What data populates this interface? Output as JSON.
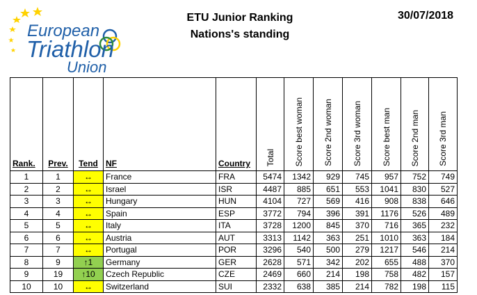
{
  "logo": {
    "line1": "European",
    "line2": "Triathlon",
    "line3": "Union"
  },
  "header": {
    "title_line1": "ETU Junior Ranking",
    "title_line2": "Nations's standing",
    "date": "30/07/2018"
  },
  "table": {
    "headers": [
      "Rank.",
      "Prev.",
      "Tend",
      "NF",
      "Country",
      "Total",
      "Score best woman",
      "Score 2nd woman",
      "Score 3rd woman",
      "Score best man",
      "Score 2nd man",
      "Score 3rd man"
    ],
    "rows": [
      {
        "rank": "1",
        "prev": "1",
        "tend": "↔",
        "trend": "same",
        "nf": "France",
        "country": "FRA",
        "total": "5474",
        "w1": "1342",
        "w2": "929",
        "w3": "745",
        "m1": "957",
        "m2": "752",
        "m3": "749"
      },
      {
        "rank": "2",
        "prev": "2",
        "tend": "↔",
        "trend": "same",
        "nf": "Israel",
        "country": "ISR",
        "total": "4487",
        "w1": "885",
        "w2": "651",
        "w3": "553",
        "m1": "1041",
        "m2": "830",
        "m3": "527"
      },
      {
        "rank": "3",
        "prev": "3",
        "tend": "↔",
        "trend": "same",
        "nf": "Hungary",
        "country": "HUN",
        "total": "4104",
        "w1": "727",
        "w2": "569",
        "w3": "416",
        "m1": "908",
        "m2": "838",
        "m3": "646"
      },
      {
        "rank": "4",
        "prev": "4",
        "tend": "↔",
        "trend": "same",
        "nf": "Spain",
        "country": "ESP",
        "total": "3772",
        "w1": "794",
        "w2": "396",
        "w3": "391",
        "m1": "1176",
        "m2": "526",
        "m3": "489"
      },
      {
        "rank": "5",
        "prev": "5",
        "tend": "↔",
        "trend": "same",
        "nf": "Italy",
        "country": "ITA",
        "total": "3728",
        "w1": "1200",
        "w2": "845",
        "w3": "370",
        "m1": "716",
        "m2": "365",
        "m3": "232"
      },
      {
        "rank": "6",
        "prev": "6",
        "tend": "↔",
        "trend": "same",
        "nf": "Austria",
        "country": "AUT",
        "total": "3313",
        "w1": "1142",
        "w2": "363",
        "w3": "251",
        "m1": "1010",
        "m2": "363",
        "m3": "184"
      },
      {
        "rank": "7",
        "prev": "7",
        "tend": "↔",
        "trend": "same",
        "nf": "Portugal",
        "country": "POR",
        "total": "3296",
        "w1": "540",
        "w2": "500",
        "w3": "279",
        "m1": "1217",
        "m2": "546",
        "m3": "214"
      },
      {
        "rank": "8",
        "prev": "9",
        "tend": "↑1",
        "trend": "up",
        "nf": "Germany",
        "country": "GER",
        "total": "2628",
        "w1": "571",
        "w2": "342",
        "w3": "202",
        "m1": "655",
        "m2": "488",
        "m3": "370"
      },
      {
        "rank": "9",
        "prev": "19",
        "tend": "↑10",
        "trend": "up",
        "nf": "Czech Republic",
        "country": "CZE",
        "total": "2469",
        "w1": "660",
        "w2": "214",
        "w3": "198",
        "m1": "758",
        "m2": "482",
        "m3": "157"
      },
      {
        "rank": "10",
        "prev": "10",
        "tend": "↔",
        "trend": "same",
        "nf": "Switzerland",
        "country": "SUI",
        "total": "2332",
        "w1": "638",
        "w2": "385",
        "w3": "214",
        "m1": "782",
        "m2": "198",
        "m3": "115"
      }
    ]
  },
  "colors": {
    "same_trend": "#ffff00",
    "up_trend": "#92d050",
    "logo_blue": "#1f5fa8",
    "logo_yellow": "#ffd200",
    "logo_green": "#2e8b3d"
  }
}
